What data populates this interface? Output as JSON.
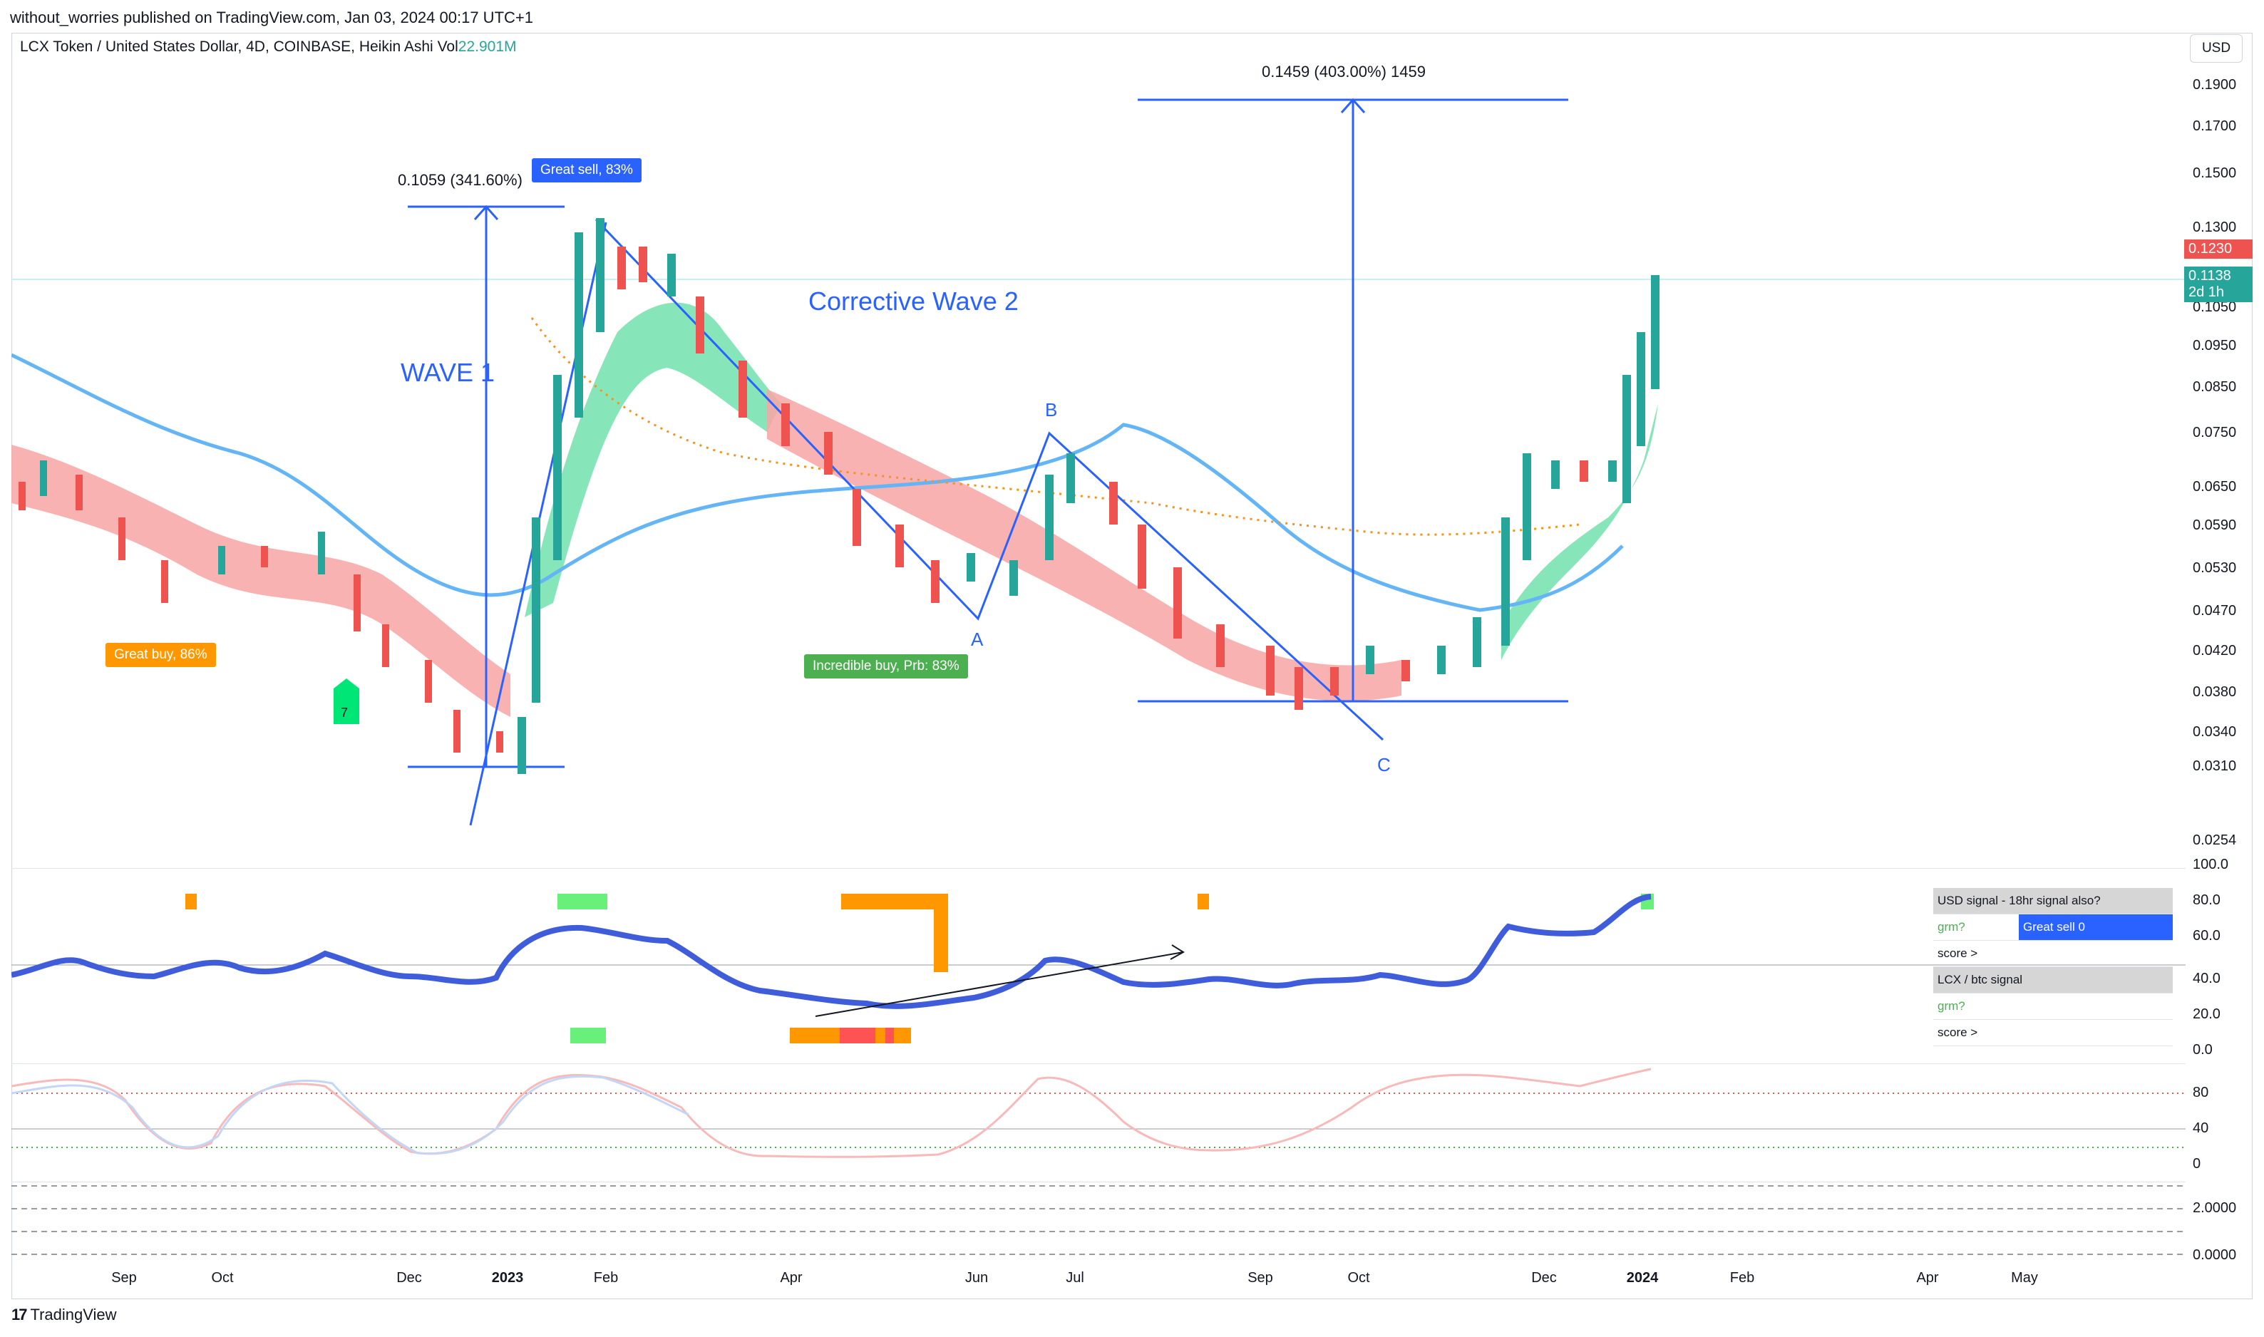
{
  "header": {
    "publisher": "without_worries published on TradingView.com, Jan 03, 2024 00:17 UTC+1",
    "symbol": "LCX Token / United States Dollar, 4D, COINBASE, Heikin Ashi",
    "vol_label": "Vol",
    "vol_value": "22.901M",
    "currency_button": "USD"
  },
  "price_axis": [
    "0.1900",
    "0.1700",
    "0.1500",
    "0.1300",
    "0.1050",
    "0.0950",
    "0.0850",
    "0.0750",
    "0.0650",
    "0.0590",
    "0.0530",
    "0.0470",
    "0.0420",
    "0.0380",
    "0.0340",
    "0.0310",
    "0.0254"
  ],
  "price_badges": {
    "red_price": "0.1230",
    "green_price": "0.1138",
    "green_time": "2d 1h"
  },
  "indicator_axis": [
    "100.0",
    "80.0",
    "60.0",
    "40.0",
    "20.0",
    "0.0"
  ],
  "stoch_axis": [
    "80",
    "40",
    "0"
  ],
  "vol_axis": [
    "2.0000",
    "0.0000"
  ],
  "time_axis": [
    "Sep",
    "Oct",
    "Dec",
    "2023",
    "Feb",
    "Apr",
    "Jun",
    "Jul",
    "Sep",
    "Oct",
    "Dec",
    "2024",
    "Feb",
    "Apr",
    "May"
  ],
  "annotations": {
    "wave1": "WAVE 1",
    "corrective": "Corrective Wave 2",
    "measure1": "0.1059 (341.60%)",
    "measure2": "0.1459 (403.00%) 1459",
    "point_a": "A",
    "point_b": "B",
    "point_c": "C",
    "great_sell": "Great sell, 83%",
    "great_buy": "Great buy,  86%",
    "incredible_buy": "Incredible buy, Prb: 83%",
    "seven": "7"
  },
  "signal_table": {
    "usd_header": "USD signal - 18hr signal also?",
    "grm_label": "grm?",
    "grm_value": "Great sell 0",
    "score_label": "score >",
    "lcx_header": "LCX / btc signal",
    "grm2_label": "grm?",
    "score2_label": "score >"
  },
  "footer": {
    "logo": "TradingView"
  },
  "colors": {
    "bull": "#26a69a",
    "bear": "#ef5350",
    "ma_blue": "#64b5f6",
    "drawing_blue": "#2962ff"
  }
}
